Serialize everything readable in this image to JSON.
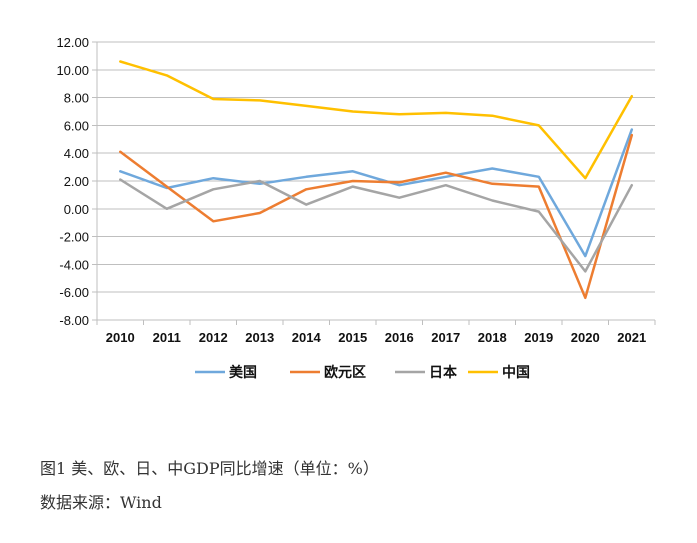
{
  "chart_data": {
    "type": "line",
    "categories": [
      "2010",
      "2011",
      "2012",
      "2013",
      "2014",
      "2015",
      "2016",
      "2017",
      "2018",
      "2019",
      "2020",
      "2021"
    ],
    "ylim": [
      -8,
      12
    ],
    "yticks": [
      "12.00",
      "10.00",
      "8.00",
      "6.00",
      "4.00",
      "2.00",
      "0.00",
      "-2.00",
      "-4.00",
      "-6.00",
      "-8.00"
    ],
    "grid": "horizontal",
    "legend_position": "bottom",
    "series": [
      {
        "name": "美国",
        "color": "#6fa8dc",
        "values": [
          2.7,
          1.5,
          2.2,
          1.8,
          2.3,
          2.7,
          1.7,
          2.3,
          2.9,
          2.3,
          -3.4,
          5.7
        ]
      },
      {
        "name": "欧元区",
        "color": "#ed7d31",
        "values": [
          4.1,
          1.6,
          -0.9,
          -0.3,
          1.4,
          2.0,
          1.9,
          2.6,
          1.8,
          1.6,
          -6.4,
          5.3
        ]
      },
      {
        "name": "日本",
        "color": "#a5a5a5",
        "values": [
          2.1,
          0.0,
          1.4,
          2.0,
          0.3,
          1.6,
          0.8,
          1.7,
          0.6,
          -0.2,
          -4.5,
          1.7
        ]
      },
      {
        "name": "中国",
        "color": "#ffc000",
        "values": [
          10.6,
          9.6,
          7.9,
          7.8,
          7.4,
          7.0,
          6.8,
          6.9,
          6.7,
          6.0,
          2.2,
          8.1
        ]
      }
    ]
  },
  "caption": {
    "title": "图1 美、欧、日、中GDP同比增速（单位：%）",
    "source": "数据来源：Wind"
  }
}
